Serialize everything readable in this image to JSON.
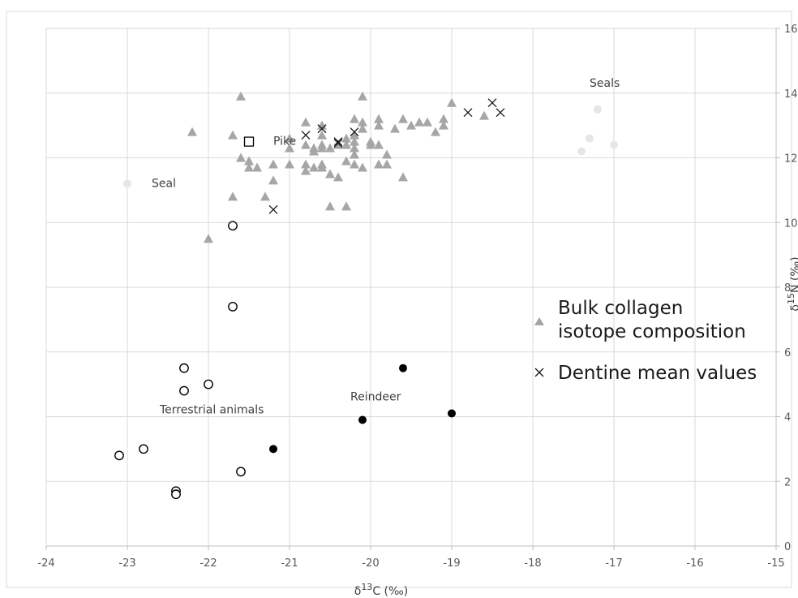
{
  "chart_data": {
    "type": "scatter",
    "xlabel_base": "δ",
    "xlabel_sup": "13",
    "xlabel_rest": "C (‰)",
    "ylabel_base": "δ",
    "ylabel_sup": "15",
    "ylabel_rest": "N (‰)",
    "xlim": [
      -24,
      -15
    ],
    "ylim": [
      0,
      16
    ],
    "xticks": [
      "-24",
      "-23",
      "-22",
      "-21",
      "-20",
      "-19",
      "-18",
      "-17",
      "-16",
      "-15"
    ],
    "yticks": [
      "0",
      "2",
      "4",
      "6",
      "8",
      "10",
      "12",
      "14",
      "16"
    ],
    "grid": true,
    "y_axis_side": "right",
    "legend": {
      "placement": "right",
      "entries": [
        {
          "marker": "triangle",
          "lines": [
            "Bulk collagen",
            "isotope composition"
          ]
        },
        {
          "marker": "cross",
          "lines": [
            "Dentine mean values"
          ]
        }
      ]
    },
    "annotations": [
      {
        "text": "Seals",
        "x": -17.3,
        "y": 14.2
      },
      {
        "text": "Pike",
        "x": -21.2,
        "y": 12.4
      },
      {
        "text": "Seal",
        "x": -22.7,
        "y": 11.1
      },
      {
        "text": "Terrestrial animals",
        "x": -22.6,
        "y": 4.1
      },
      {
        "text": "Reindeer",
        "x": -20.25,
        "y": 4.5
      }
    ],
    "series": [
      {
        "marker": "triangle",
        "color": "#a6a6a6",
        "points": [
          [
            -22.2,
            12.8
          ],
          [
            -21.6,
            13.9
          ],
          [
            -21.7,
            12.7
          ],
          [
            -21.6,
            12.0
          ],
          [
            -21.5,
            11.9
          ],
          [
            -21.5,
            11.7
          ],
          [
            -21.4,
            11.7
          ],
          [
            -21.7,
            10.8
          ],
          [
            -22.0,
            9.5
          ],
          [
            -21.3,
            10.8
          ],
          [
            -21.2,
            11.3
          ],
          [
            -21.2,
            11.8
          ],
          [
            -21.0,
            12.6
          ],
          [
            -21.0,
            12.3
          ],
          [
            -21.0,
            11.8
          ],
          [
            -20.8,
            13.1
          ],
          [
            -20.8,
            12.4
          ],
          [
            -20.8,
            11.8
          ],
          [
            -20.8,
            11.6
          ],
          [
            -20.7,
            12.3
          ],
          [
            -20.7,
            12.2
          ],
          [
            -20.7,
            11.7
          ],
          [
            -20.6,
            13.0
          ],
          [
            -20.6,
            12.7
          ],
          [
            -20.6,
            12.4
          ],
          [
            -20.6,
            12.3
          ],
          [
            -20.6,
            11.8
          ],
          [
            -20.6,
            11.7
          ],
          [
            -20.5,
            12.3
          ],
          [
            -20.5,
            11.5
          ],
          [
            -20.5,
            10.5
          ],
          [
            -20.4,
            12.4
          ],
          [
            -20.4,
            11.4
          ],
          [
            -20.3,
            12.6
          ],
          [
            -20.3,
            12.4
          ],
          [
            -20.3,
            11.9
          ],
          [
            -20.3,
            10.5
          ],
          [
            -20.2,
            13.2
          ],
          [
            -20.2,
            12.7
          ],
          [
            -20.2,
            12.5
          ],
          [
            -20.2,
            12.3
          ],
          [
            -20.2,
            12.1
          ],
          [
            -20.2,
            11.8
          ],
          [
            -20.1,
            13.9
          ],
          [
            -20.1,
            13.1
          ],
          [
            -20.1,
            12.9
          ],
          [
            -20.1,
            11.7
          ],
          [
            -20.0,
            12.5
          ],
          [
            -20.0,
            12.4
          ],
          [
            -19.9,
            13.2
          ],
          [
            -19.9,
            13.0
          ],
          [
            -19.9,
            12.4
          ],
          [
            -19.9,
            11.8
          ],
          [
            -19.8,
            12.1
          ],
          [
            -19.8,
            11.8
          ],
          [
            -19.7,
            12.9
          ],
          [
            -19.6,
            13.2
          ],
          [
            -19.6,
            11.4
          ],
          [
            -19.5,
            13.0
          ],
          [
            -19.4,
            13.1
          ],
          [
            -19.3,
            13.1
          ],
          [
            -19.2,
            12.8
          ],
          [
            -19.1,
            13.2
          ],
          [
            -19.1,
            13.0
          ],
          [
            -19.0,
            13.7
          ],
          [
            -18.6,
            13.3
          ]
        ]
      },
      {
        "marker": "cross",
        "color": "#1a1a1a",
        "points": [
          [
            -21.2,
            10.4
          ],
          [
            -20.8,
            12.7
          ],
          [
            -20.6,
            12.9
          ],
          [
            -20.4,
            12.5
          ],
          [
            -20.4,
            12.45
          ],
          [
            -20.2,
            12.8
          ],
          [
            -18.8,
            13.4
          ],
          [
            -18.5,
            13.7
          ],
          [
            -18.4,
            13.4
          ]
        ]
      },
      {
        "marker": "open-circle",
        "color": "#000000",
        "points": [
          [
            -21.7,
            9.9
          ],
          [
            -21.7,
            7.4
          ],
          [
            -22.3,
            5.5
          ],
          [
            -22.3,
            4.8
          ],
          [
            -22.0,
            5.0
          ],
          [
            -22.8,
            3.0
          ],
          [
            -23.1,
            2.8
          ],
          [
            -22.4,
            1.7
          ],
          [
            -22.4,
            1.6
          ],
          [
            -21.6,
            2.3
          ]
        ]
      },
      {
        "marker": "filled-circle",
        "color": "#000000",
        "points": [
          [
            -21.2,
            3.0
          ],
          [
            -20.1,
            3.9
          ],
          [
            -19.6,
            5.5
          ],
          [
            -19.0,
            4.1
          ]
        ]
      },
      {
        "marker": "light-circle",
        "color": "#e6e6e6",
        "points": [
          [
            -23.0,
            11.2
          ],
          [
            -17.4,
            12.2
          ],
          [
            -17.3,
            12.6
          ],
          [
            -17.2,
            13.5
          ],
          [
            -17.0,
            12.4
          ]
        ]
      },
      {
        "marker": "open-square",
        "color": "#000000",
        "points": [
          [
            -21.5,
            12.5
          ]
        ]
      }
    ]
  }
}
